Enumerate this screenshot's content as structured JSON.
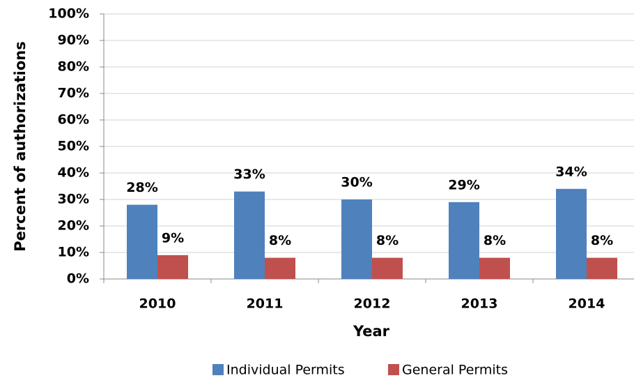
{
  "chart_data": {
    "type": "bar",
    "x_label": "Year",
    "y_label": "Percent of authorizations",
    "categories": [
      "2010",
      "2011",
      "2012",
      "2013",
      "2014"
    ],
    "series": [
      {
        "name": "Individual Permits",
        "color": "#4f81bd",
        "values": [
          28,
          33,
          30,
          29,
          34
        ],
        "value_labels": [
          "28%",
          "33%",
          "30%",
          "29%",
          "34%"
        ]
      },
      {
        "name": "General Permits",
        "color": "#c0504d",
        "values": [
          9,
          8,
          8,
          8,
          8
        ],
        "value_labels": [
          "9%",
          "8%",
          "8%",
          "8%",
          "8%"
        ]
      }
    ],
    "ylim": [
      0,
      100
    ],
    "yticks": [
      {
        "value": 0,
        "label": "0%"
      },
      {
        "value": 10,
        "label": "10%"
      },
      {
        "value": 20,
        "label": "20%"
      },
      {
        "value": 30,
        "label": "30%"
      },
      {
        "value": 40,
        "label": "40%"
      },
      {
        "value": 50,
        "label": "50%"
      },
      {
        "value": 60,
        "label": "60%"
      },
      {
        "value": 70,
        "label": "70%"
      },
      {
        "value": 80,
        "label": "80%"
      },
      {
        "value": 90,
        "label": "90%"
      },
      {
        "value": 100,
        "label": "100%"
      }
    ],
    "grid": true,
    "legend": "bottom"
  }
}
